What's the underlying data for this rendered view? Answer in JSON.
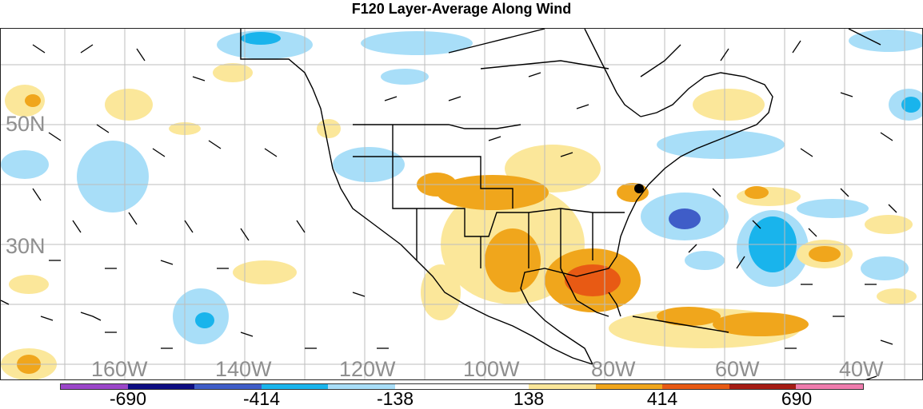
{
  "title": "F120 Layer-Average Along Wind",
  "lat_labels": [
    "50N",
    "30N"
  ],
  "lon_labels": [
    "160W",
    "140W",
    "120W",
    "100W",
    "80W",
    "60W",
    "40W"
  ],
  "colorbar": {
    "colors": [
      "#9b46c9",
      "#0d0d82",
      "#3f5dc8",
      "#19b4ec",
      "#a8def8",
      "#ffffff",
      "#ffffff",
      "#fbe79a",
      "#f0a61c",
      "#e85a14",
      "#a51c14",
      "#ee7cad"
    ],
    "labels": [
      "-690",
      "-414",
      "-138",
      "138",
      "414",
      "690"
    ]
  },
  "map_colors": {
    "light_blue": "#a8def8",
    "blue": "#19b4ec",
    "dark_blue": "#3f5dc8",
    "light_yellow": "#fbe79a",
    "orange": "#f0a61c",
    "red_orange": "#e85a14"
  }
}
